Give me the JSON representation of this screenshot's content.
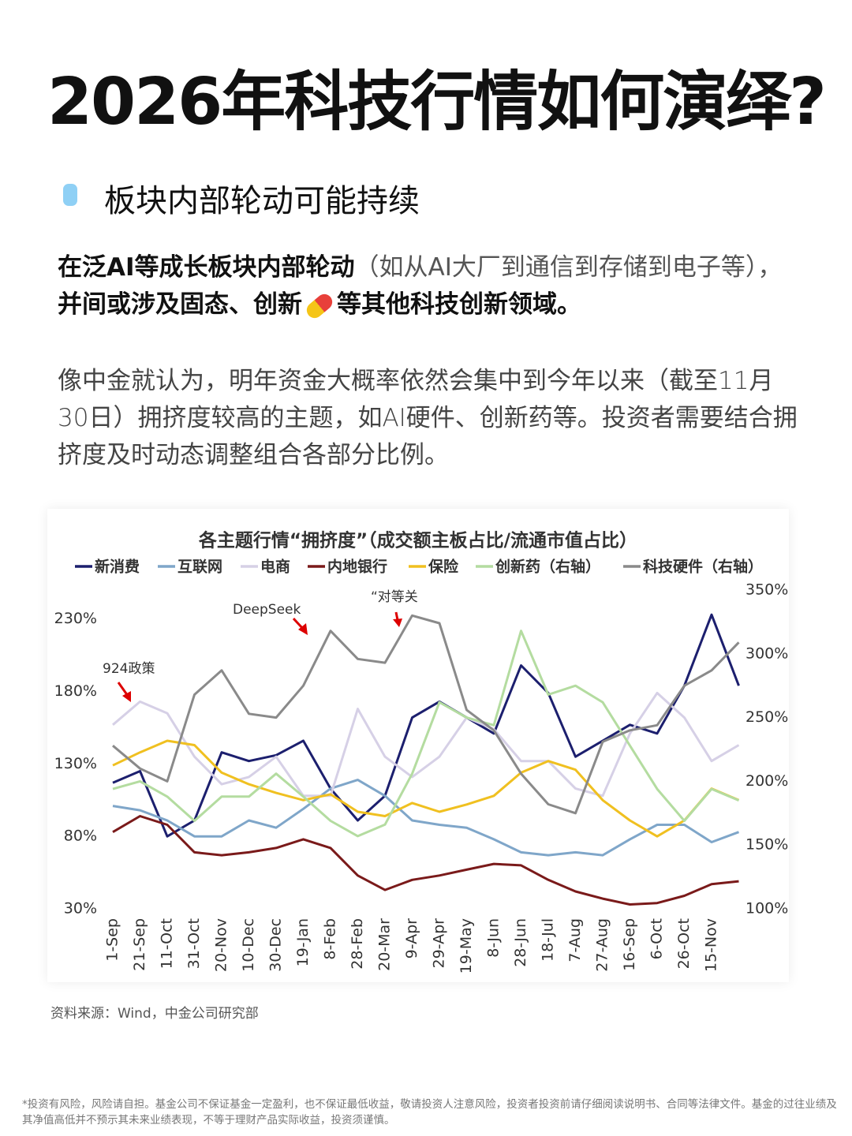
{
  "header": {
    "title": "2026年科技行情如何演绎?"
  },
  "section": {
    "heading": "板块内部轮动可能持续"
  },
  "paragraphs": [
    {
      "runs": [
        "在泛AI等成长板块内部轮动",
        "（如从AI大厂到通信到存储到电子等），",
        "并间或涉及固态、创新",
        "等其他科技创新领域。"
      ]
    },
    {
      "runs": [
        "像中金就认为，明年资金大概率依然会集中到今年以来（截至11月30日）拥挤度较高的主题，如AI硬件、创新药等。投资者需要结合拥挤度及时动态调整组合各部分比例。"
      ]
    }
  ],
  "chart_data": {
    "type": "line",
    "title": "各主题行情“拥挤度”（成交额主板占比/流通市值占比）",
    "categories": [
      "1-Sep",
      "21-Sep",
      "11-Oct",
      "31-Oct",
      "20-Nov",
      "10-Dec",
      "30-Dec",
      "19-Jan",
      "8-Feb",
      "28-Feb",
      "20-Mar",
      "9-Apr",
      "29-Apr",
      "19-May",
      "8-Jun",
      "28-Jun",
      "18-Jul",
      "7-Aug",
      "27-Aug",
      "16-Sep",
      "6-Oct",
      "26-Oct",
      "15-Nov",
      null
    ],
    "series": [
      {
        "name": "新消费",
        "color": "#1c1f6e",
        "values": [
          117,
          125,
          80,
          91,
          138,
          132,
          136,
          146,
          113,
          91,
          108,
          162,
          173,
          162,
          151,
          198,
          179,
          135,
          146,
          157,
          151,
          184,
          233,
          184
        ]
      },
      {
        "name": "互联网",
        "color": "#7fa6c9",
        "values": [
          101,
          98,
          91,
          80,
          80,
          91,
          86,
          99,
          113,
          119,
          108,
          91,
          88,
          86,
          78,
          69,
          67,
          69,
          67,
          78,
          88,
          88,
          76,
          83
        ]
      },
      {
        "name": "电商",
        "color": "#d6d0e6",
        "values": [
          157,
          173,
          165,
          135,
          116,
          121,
          135,
          108,
          108,
          168,
          135,
          121,
          135,
          162,
          154,
          132,
          132,
          113,
          108,
          151,
          179,
          162,
          132,
          143
        ]
      },
      {
        "name": "内地银行",
        "color": "#7a1a1a",
        "values": [
          83,
          94,
          88,
          69,
          67,
          69,
          72,
          78,
          72,
          53,
          43,
          50,
          53,
          57,
          61,
          60,
          50,
          42,
          37,
          33,
          34,
          39,
          47,
          49
        ]
      },
      {
        "name": "保险",
        "color": "#f0c020",
        "values": [
          129,
          138,
          146,
          143,
          124,
          116,
          110,
          105,
          109,
          97,
          94,
          103,
          97,
          102,
          108,
          124,
          132,
          126,
          105,
          91,
          80,
          91,
          113,
          105
        ]
      },
      {
        "name": "创新药（右轴）",
        "color": "#b4dca0",
        "axis": "y2",
        "values": [
          194,
          200,
          188,
          169,
          188,
          188,
          206,
          188,
          169,
          157,
          166,
          206,
          262,
          250,
          244,
          318,
          268,
          275,
          262,
          228,
          194,
          169,
          194,
          185
        ]
      },
      {
        "name": "科技硬件（右轴）",
        "color": "#8a8a8a",
        "axis": "y2",
        "values": [
          228,
          210,
          200,
          268,
          287,
          253,
          250,
          275,
          318,
          296,
          293,
          330,
          324,
          256,
          240,
          206,
          182,
          175,
          231,
          240,
          244,
          275,
          287,
          309
        ]
      }
    ],
    "ylim": [
      30,
      250
    ],
    "yticks": [
      {
        "value": 30,
        "label": "30%"
      },
      {
        "value": 80,
        "label": "80%"
      },
      {
        "value": 130,
        "label": "130%"
      },
      {
        "value": 180,
        "label": "180%"
      },
      {
        "value": 230,
        "label": "230%"
      }
    ],
    "y2lim": [
      100,
      350
    ],
    "y2ticks": [
      {
        "value": 100,
        "label": "100%"
      },
      {
        "value": 150,
        "label": "150%"
      },
      {
        "value": 200,
        "label": "200%"
      },
      {
        "value": 250,
        "label": "250%"
      },
      {
        "value": 300,
        "label": "300%"
      },
      {
        "value": 350,
        "label": "350%"
      }
    ],
    "annotations": [
      "924政策",
      "DeepSeek",
      "“对等关"
    ]
  },
  "source": "资料来源：Wind，中金公司研究部",
  "disclaimer": "*投资有风险，风险请自担。基金公司不保证基金一定盈利，也不保证最低收益，敬请投资人注意风险，投资者投资前请仔细阅读说明书、合同等法律文件。基金的过往业绩及其净值高低并不预示其未来业绩表现，不等于理财产品实际收益，投资须谨慎。"
}
